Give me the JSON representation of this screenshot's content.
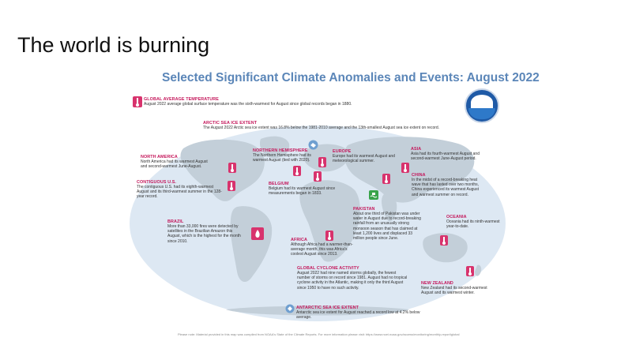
{
  "slide": {
    "title": "The world is burning"
  },
  "map": {
    "title": "Selected Significant Climate Anomalies and Events: August 2022"
  },
  "events": {
    "global_avg_temp": {
      "title": "GLOBAL AVERAGE TEMPERATURE",
      "text": "August 2022 average global surface temperature was the sixth-warmest for August since global records began in 1880."
    },
    "arctic": {
      "title": "ARCTIC SEA ICE EXTENT",
      "text": "The August 2022 Arctic sea ice extent was 16.8% below the 1981-2010 average and the 13th-smallest August sea ice extent on record."
    },
    "north_america": {
      "title": "NORTH AMERICA",
      "text": "North America had its warmest August and second-warmest June-August."
    },
    "northern_hemisphere": {
      "title": "NORTHERN HEMISPHERE",
      "text": "The Northern Hemisphere had its warmest August (tied with 2020)."
    },
    "europe": {
      "title": "EUROPE",
      "text": "Europe had its warmest August and meteorological summer."
    },
    "asia": {
      "title": "ASIA",
      "text": "Asia had its fourth-warmest August and second-warmest June-August period."
    },
    "contiguous_us": {
      "title": "CONTIGUOUS U.S.",
      "text": "The contiguous U.S. had its eighth-warmest August and its third-warmest summer in the 128-year record."
    },
    "belgium": {
      "title": "BELGIUM",
      "text": "Belgium had its warmest August since measurements began in 1833."
    },
    "china": {
      "title": "CHINA",
      "text": "In the midst of a record-breaking heat wave that has lasted over two months, China experienced its warmest August and warmest summer on record."
    },
    "pakistan": {
      "title": "PAKISTAN",
      "text": "About one third of Pakistan was under water in August due to record-breaking rainfall from an unusually strong monsoon season that has claimed at least 1,200 lives and displaced 33 million people since June."
    },
    "oceania": {
      "title": "OCEANIA",
      "text": "Oceania had its ninth-warmest year-to-date."
    },
    "brazil": {
      "title": "BRAZIL",
      "text": "More than 33,000 fires were detected by satellites in the Brazilian Amazon this August, which is the highest for the month since 2010."
    },
    "africa": {
      "title": "AFRICA",
      "text": "Although Africa had a warmer-than-average month, this was Africa's coolest August since 2013."
    },
    "cyclone": {
      "title": "GLOBAL CYCLONE ACTIVITY",
      "text": "August 2022 had nine named storms globally, the fewest number of storms on record since 1981. August had no tropical cyclone activity in the Atlantic, making it only the third August since 1950 to have no such activity."
    },
    "new_zealand": {
      "title": "NEW ZEALAND",
      "text": "New Zealand had its second-warmest August and its warmest winter."
    },
    "antarctic": {
      "title": "ANTARCTIC SEA ICE EXTENT",
      "text": "Antarctic sea ice extent for August reached a record low at 4.2% below average."
    }
  },
  "footnote": "Please note: Material provided in this map was compiled from NOAA's State of the Climate Reports. For more information please visit: https://www.ncei.noaa.gov/access/monitoring/monthly-report/global",
  "colors": {
    "accent": "#c4165a",
    "title_blue": "#5b86b8",
    "ocean": "#dde8f3",
    "land": "#c3cfd9"
  },
  "icons": [
    "thermometer-icon",
    "sea-ice-icon",
    "fire-icon",
    "flood-icon",
    "cyclone-icon",
    "noaa-logo"
  ]
}
